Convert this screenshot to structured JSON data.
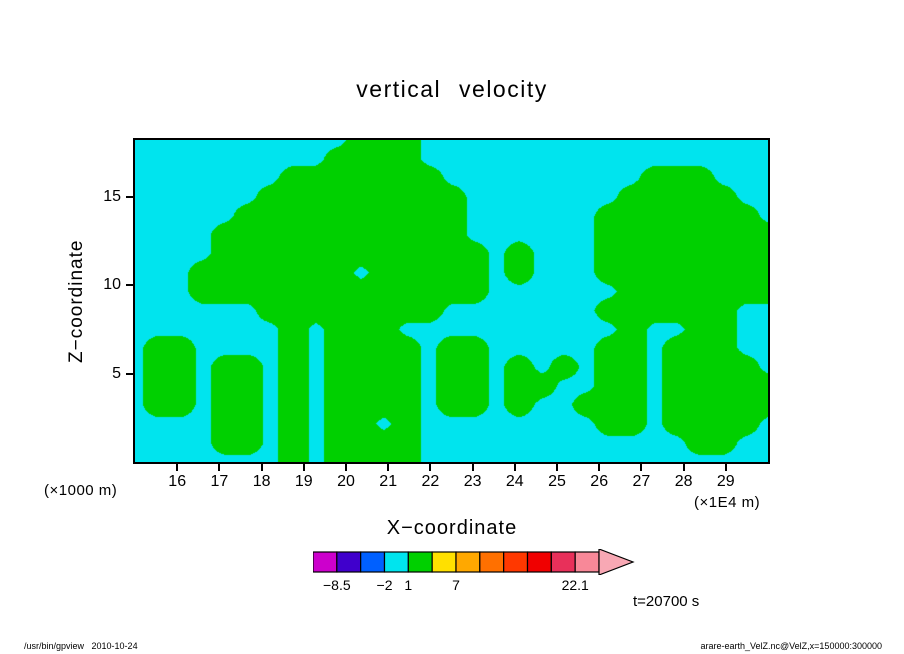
{
  "title": "vertical velocity",
  "axes": {
    "y_label": "Z−coordinate",
    "x_label": "X−coordinate",
    "y_unit": "(×1000 m)",
    "x_unit": "(×1E4 m)"
  },
  "annotations": {
    "time": "t=20700 s"
  },
  "footer": {
    "left": "/usr/bin/gpview   2010-10-24",
    "right": "arare-earth_VelZ.nc@VelZ,x=150000:300000"
  },
  "colorbar": {
    "segment_colors": [
      "#cc00cc",
      "#4000cc",
      "#0060ff",
      "#00e4ee",
      "#00d000",
      "#ffe000",
      "#ffa800",
      "#ff7000",
      "#ff3800",
      "#f00000",
      "#e8305a",
      "#f88898"
    ],
    "arrow_color": "#f8a8b4",
    "labels": [
      {
        "text": "−8.5",
        "boundary": 1
      },
      {
        "text": "−2",
        "boundary": 3
      },
      {
        "text": "1",
        "boundary": 4
      },
      {
        "text": "7",
        "boundary": 6
      },
      {
        "text": "22.1",
        "boundary": 11
      }
    ]
  },
  "chart_data": {
    "type": "heatmap",
    "title": "vertical velocity",
    "xlabel": "X−coordinate (×1E4 m)",
    "ylabel": "Z−coordinate (×1000 m)",
    "x_range": [
      15,
      30
    ],
    "z_range": [
      0,
      18.2
    ],
    "x_ticks": [
      16,
      17,
      18,
      19,
      20,
      21,
      22,
      23,
      24,
      25,
      26,
      27,
      28,
      29
    ],
    "y_ticks": [
      5,
      10,
      15
    ],
    "legend": "filled contour tone; visible levels: cyan = −2..1, green = 1..4; full scale −8.5..22.1 step 3",
    "threshold": 1,
    "cell_values": {
      "green_region": 3,
      "cyan_region": 0
    },
    "fill_colors": {
      "cyan": "#00e4ee",
      "green": "#00d000"
    },
    "grid_rows": [
      "..........ggg................",
      ".........gggg................",
      ".......ggggggg.........ggg...",
      "......ggggggggg.......ggggg..",
      ".....gggggggggg......ggggggg.",
      "....ggggggggggg......gggggggg",
      "....gggggggggggg.g...gggggggg",
      "...ggggggg.ggggg.g...gggggggg",
      "...ggggggggggggg......ggggggg",
      "......gggggggg.......gggggg..",
      ".......g.ggg..........g..gg..",
      ".gg....g.gggg.gg.....gg.ggg..",
      ".gg.gg.g.gggg.gg.g.g.gg.gggg.",
      ".gg.gg.g.gggg.gg.gg..gg.ggggg",
      ".gg.gg.g.gggg.gg.g..ggg.ggggg",
      "....gg.g.gg.g........gg.gggg.",
      "....gg.g.gggg............gg..",
      ".......g.gggg................"
    ]
  }
}
